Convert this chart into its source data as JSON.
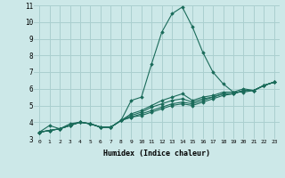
{
  "xlabel": "Humidex (Indice chaleur)",
  "ylabel": "",
  "xlim": [
    -0.5,
    23.5
  ],
  "ylim": [
    3,
    11
  ],
  "xticks": [
    0,
    1,
    2,
    3,
    4,
    5,
    6,
    7,
    8,
    9,
    10,
    11,
    12,
    13,
    14,
    15,
    16,
    17,
    18,
    19,
    20,
    21,
    22,
    23
  ],
  "yticks": [
    3,
    4,
    5,
    6,
    7,
    8,
    9,
    10,
    11
  ],
  "background_color": "#cce8e8",
  "line_color": "#1a6b5a",
  "grid_color": "#aacfcf",
  "lines": [
    {
      "x": [
        0,
        1,
        2,
        3,
        4,
        5,
        6,
        7,
        8,
        9,
        10,
        11,
        12,
        13,
        14,
        15,
        16,
        17,
        18,
        19,
        20,
        21,
        22,
        23
      ],
      "y": [
        3.4,
        3.8,
        3.6,
        3.9,
        4.0,
        3.9,
        3.7,
        3.7,
        4.1,
        5.3,
        5.5,
        7.5,
        9.4,
        10.5,
        10.9,
        9.7,
        8.2,
        7.0,
        6.3,
        5.8,
        5.8,
        5.9,
        6.2,
        6.4
      ]
    },
    {
      "x": [
        0,
        1,
        2,
        3,
        4,
        5,
        6,
        7,
        8,
        9,
        10,
        11,
        12,
        13,
        14,
        15,
        16,
        17,
        18,
        19,
        20,
        21,
        22,
        23
      ],
      "y": [
        3.4,
        3.5,
        3.6,
        3.8,
        4.0,
        3.9,
        3.7,
        3.7,
        4.1,
        4.5,
        4.7,
        5.0,
        5.3,
        5.5,
        5.7,
        5.3,
        5.5,
        5.6,
        5.8,
        5.8,
        6.0,
        5.9,
        6.2,
        6.4
      ]
    },
    {
      "x": [
        0,
        1,
        2,
        3,
        4,
        5,
        6,
        7,
        8,
        9,
        10,
        11,
        12,
        13,
        14,
        15,
        16,
        17,
        18,
        19,
        20,
        21,
        22,
        23
      ],
      "y": [
        3.4,
        3.5,
        3.6,
        3.8,
        4.0,
        3.9,
        3.7,
        3.7,
        4.1,
        4.4,
        4.6,
        4.9,
        5.1,
        5.3,
        5.4,
        5.2,
        5.4,
        5.5,
        5.7,
        5.7,
        5.9,
        5.9,
        6.2,
        6.4
      ]
    },
    {
      "x": [
        0,
        1,
        2,
        3,
        4,
        5,
        6,
        7,
        8,
        9,
        10,
        11,
        12,
        13,
        14,
        15,
        16,
        17,
        18,
        19,
        20,
        21,
        22,
        23
      ],
      "y": [
        3.4,
        3.5,
        3.6,
        3.8,
        4.0,
        3.9,
        3.7,
        3.7,
        4.1,
        4.3,
        4.5,
        4.7,
        4.9,
        5.1,
        5.2,
        5.1,
        5.3,
        5.5,
        5.7,
        5.7,
        5.9,
        5.9,
        6.2,
        6.4
      ]
    },
    {
      "x": [
        0,
        1,
        2,
        3,
        4,
        5,
        6,
        7,
        8,
        9,
        10,
        11,
        12,
        13,
        14,
        15,
        16,
        17,
        18,
        19,
        20,
        21,
        22,
        23
      ],
      "y": [
        3.4,
        3.5,
        3.6,
        3.8,
        4.0,
        3.9,
        3.7,
        3.7,
        4.1,
        4.3,
        4.4,
        4.6,
        4.8,
        5.0,
        5.1,
        5.0,
        5.2,
        5.4,
        5.6,
        5.7,
        5.9,
        5.9,
        6.2,
        6.4
      ]
    }
  ]
}
